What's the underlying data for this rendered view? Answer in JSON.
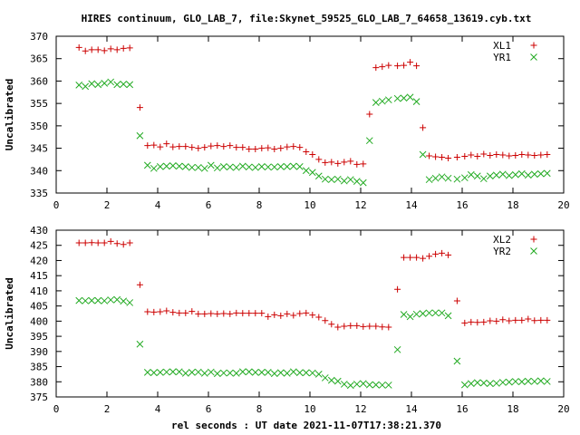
{
  "title": "HIRES continuum, GLO_LAB_7, file:Skynet_59525_GLO_LAB_7_64658_13619.cyb.txt",
  "colors": {
    "series1": "#cc0000",
    "series2": "#22aa22"
  },
  "chart_data": [
    {
      "type": "scatter",
      "xlabel": "",
      "ylabel": "Uncalibrated",
      "xlim": [
        0,
        20
      ],
      "ylim": [
        335,
        370
      ],
      "xticks": [
        0,
        2,
        4,
        6,
        8,
        10,
        12,
        14,
        16,
        18,
        20
      ],
      "yticks": [
        335,
        340,
        345,
        350,
        355,
        360,
        365,
        370
      ],
      "legend_position": "top-right",
      "series": [
        {
          "name": "XL1",
          "marker": "plus",
          "x": [
            0.9,
            1.15,
            1.4,
            1.65,
            1.9,
            2.15,
            2.4,
            2.65,
            2.9,
            3.3,
            3.6,
            3.85,
            4.1,
            4.35,
            4.6,
            4.85,
            5.1,
            5.35,
            5.6,
            5.85,
            6.1,
            6.35,
            6.6,
            6.85,
            7.1,
            7.35,
            7.6,
            7.85,
            8.1,
            8.35,
            8.6,
            8.85,
            9.1,
            9.35,
            9.6,
            9.85,
            10.1,
            10.35,
            10.6,
            10.85,
            11.1,
            11.35,
            11.6,
            11.85,
            12.1,
            12.35,
            12.6,
            12.85,
            13.1,
            13.45,
            13.7,
            13.95,
            14.2,
            14.45,
            14.7,
            14.95,
            15.2,
            15.45,
            15.8,
            16.1,
            16.35,
            16.6,
            16.85,
            17.1,
            17.35,
            17.6,
            17.85,
            18.1,
            18.35,
            18.6,
            18.85,
            19.1,
            19.35
          ],
          "y": [
            367.5,
            366.7,
            367.0,
            367.0,
            366.8,
            367.2,
            367.0,
            367.3,
            367.4,
            354.1,
            345.6,
            345.7,
            345.3,
            346.0,
            345.3,
            345.4,
            345.4,
            345.2,
            345.0,
            345.2,
            345.5,
            345.6,
            345.4,
            345.6,
            345.2,
            345.2,
            344.8,
            344.8,
            345.0,
            345.1,
            344.8,
            345.0,
            345.3,
            345.4,
            345.2,
            344.2,
            343.6,
            342.5,
            341.8,
            341.9,
            341.6,
            341.9,
            342.1,
            341.4,
            341.5,
            352.6,
            363.0,
            363.2,
            363.5,
            363.4,
            363.5,
            364.2,
            363.4,
            349.6,
            343.3,
            343.1,
            343.0,
            342.8,
            343.0,
            343.2,
            343.5,
            343.2,
            343.7,
            343.4,
            343.6,
            343.5,
            343.3,
            343.4,
            343.6,
            343.5,
            343.4,
            343.5,
            343.6
          ]
        },
        {
          "name": "YR1",
          "marker": "cross",
          "x": [
            0.9,
            1.15,
            1.4,
            1.65,
            1.9,
            2.15,
            2.4,
            2.65,
            2.9,
            3.3,
            3.6,
            3.85,
            4.1,
            4.35,
            4.6,
            4.85,
            5.1,
            5.35,
            5.6,
            5.85,
            6.1,
            6.35,
            6.6,
            6.85,
            7.1,
            7.35,
            7.6,
            7.85,
            8.1,
            8.35,
            8.6,
            8.85,
            9.1,
            9.35,
            9.6,
            9.85,
            10.1,
            10.35,
            10.6,
            10.85,
            11.1,
            11.35,
            11.6,
            11.85,
            12.1,
            12.35,
            12.6,
            12.85,
            13.1,
            13.45,
            13.7,
            13.95,
            14.2,
            14.45,
            14.7,
            14.95,
            15.2,
            15.45,
            15.8,
            16.1,
            16.35,
            16.6,
            16.85,
            17.1,
            17.35,
            17.6,
            17.85,
            18.1,
            18.35,
            18.6,
            18.85,
            19.1,
            19.35
          ],
          "y": [
            359.1,
            358.8,
            359.4,
            359.2,
            359.5,
            359.8,
            359.2,
            359.3,
            359.2,
            347.8,
            341.2,
            340.5,
            340.9,
            341.0,
            341.1,
            341.0,
            340.9,
            340.7,
            340.7,
            340.5,
            341.2,
            340.6,
            340.9,
            340.8,
            340.7,
            341.0,
            340.8,
            340.7,
            340.9,
            340.8,
            340.8,
            340.9,
            340.9,
            341.0,
            340.9,
            340.0,
            339.6,
            338.8,
            338.1,
            338.0,
            338.1,
            337.7,
            338.0,
            337.6,
            337.3,
            346.7,
            355.2,
            355.5,
            355.8,
            356.1,
            356.2,
            356.4,
            355.4,
            343.6,
            338.0,
            338.3,
            338.6,
            338.3,
            338.1,
            338.4,
            339.1,
            338.8,
            338.2,
            338.8,
            339.0,
            339.2,
            338.9,
            339.1,
            339.3,
            339.0,
            339.2,
            339.3,
            339.4
          ]
        }
      ]
    },
    {
      "type": "scatter",
      "xlabel": "rel seconds : UT date 2021-11-07T17:38:21.370",
      "ylabel": "Uncalibrated",
      "xlim": [
        0,
        20
      ],
      "ylim": [
        375,
        430
      ],
      "xticks": [
        0,
        2,
        4,
        6,
        8,
        10,
        12,
        14,
        16,
        18,
        20
      ],
      "yticks": [
        375,
        380,
        385,
        390,
        395,
        400,
        405,
        410,
        415,
        420,
        425,
        430
      ],
      "legend_position": "top-right",
      "series": [
        {
          "name": "XL2",
          "marker": "plus",
          "x": [
            0.9,
            1.15,
            1.4,
            1.65,
            1.9,
            2.15,
            2.4,
            2.65,
            2.9,
            3.3,
            3.6,
            3.85,
            4.1,
            4.35,
            4.6,
            4.85,
            5.1,
            5.35,
            5.6,
            5.85,
            6.1,
            6.35,
            6.6,
            6.85,
            7.1,
            7.35,
            7.6,
            7.85,
            8.1,
            8.35,
            8.6,
            8.85,
            9.1,
            9.35,
            9.6,
            9.85,
            10.1,
            10.35,
            10.6,
            10.85,
            11.1,
            11.35,
            11.6,
            11.85,
            12.1,
            12.35,
            12.6,
            12.85,
            13.1,
            13.45,
            13.7,
            13.95,
            14.2,
            14.45,
            14.7,
            14.95,
            15.2,
            15.45,
            15.8,
            16.1,
            16.35,
            16.6,
            16.85,
            17.1,
            17.35,
            17.6,
            17.85,
            18.1,
            18.35,
            18.6,
            18.85,
            19.1,
            19.35
          ],
          "y": [
            425.8,
            425.8,
            425.9,
            425.8,
            425.8,
            426.3,
            425.6,
            425.3,
            425.8,
            412.0,
            403.1,
            403.0,
            403.1,
            403.4,
            402.9,
            402.7,
            402.7,
            403.2,
            402.4,
            402.4,
            402.5,
            402.4,
            402.5,
            402.4,
            402.7,
            402.6,
            402.6,
            402.6,
            402.6,
            401.5,
            402.1,
            401.8,
            402.4,
            401.9,
            402.5,
            402.7,
            402.0,
            401.3,
            400.2,
            399.0,
            398.0,
            398.3,
            398.5,
            398.5,
            398.2,
            398.3,
            398.3,
            398.1,
            398.0,
            410.5,
            421.0,
            421.0,
            421.0,
            420.7,
            421.4,
            422.1,
            422.4,
            421.8,
            406.7,
            399.4,
            399.7,
            399.6,
            399.7,
            400.1,
            400.0,
            400.5,
            400.1,
            400.3,
            400.3,
            400.7,
            400.2,
            400.3,
            400.3
          ]
        },
        {
          "name": "YR2",
          "marker": "cross",
          "x": [
            0.9,
            1.15,
            1.4,
            1.65,
            1.9,
            2.15,
            2.4,
            2.65,
            2.9,
            3.3,
            3.6,
            3.85,
            4.1,
            4.35,
            4.6,
            4.85,
            5.1,
            5.35,
            5.6,
            5.85,
            6.1,
            6.35,
            6.6,
            6.85,
            7.1,
            7.35,
            7.6,
            7.85,
            8.1,
            8.35,
            8.6,
            8.85,
            9.1,
            9.35,
            9.6,
            9.85,
            10.1,
            10.35,
            10.6,
            10.85,
            11.1,
            11.35,
            11.6,
            11.85,
            12.1,
            12.35,
            12.6,
            12.85,
            13.1,
            13.45,
            13.7,
            13.95,
            14.2,
            14.45,
            14.7,
            14.95,
            15.2,
            15.45,
            15.8,
            16.1,
            16.35,
            16.6,
            16.85,
            17.1,
            17.35,
            17.6,
            17.85,
            18.1,
            18.35,
            18.6,
            18.85,
            19.1,
            19.35
          ],
          "y": [
            406.8,
            406.7,
            406.8,
            406.8,
            406.7,
            407.0,
            407.1,
            406.6,
            406.1,
            392.4,
            383.1,
            383.0,
            383.1,
            383.2,
            383.3,
            383.3,
            382.8,
            383.1,
            383.2,
            382.8,
            383.2,
            382.7,
            382.9,
            382.9,
            382.8,
            383.3,
            383.3,
            383.1,
            383.1,
            383.1,
            382.7,
            383.0,
            382.8,
            383.3,
            383.0,
            383.0,
            382.9,
            382.5,
            381.3,
            380.5,
            380.2,
            379.2,
            378.8,
            379.2,
            379.4,
            379.0,
            379.0,
            378.9,
            378.9,
            390.6,
            402.2,
            401.5,
            402.3,
            402.5,
            402.7,
            402.7,
            402.7,
            401.8,
            386.8,
            379.0,
            379.4,
            379.7,
            379.6,
            379.4,
            379.5,
            379.8,
            379.9,
            380.1,
            380.0,
            380.2,
            380.1,
            380.3,
            380.1
          ]
        }
      ]
    }
  ]
}
